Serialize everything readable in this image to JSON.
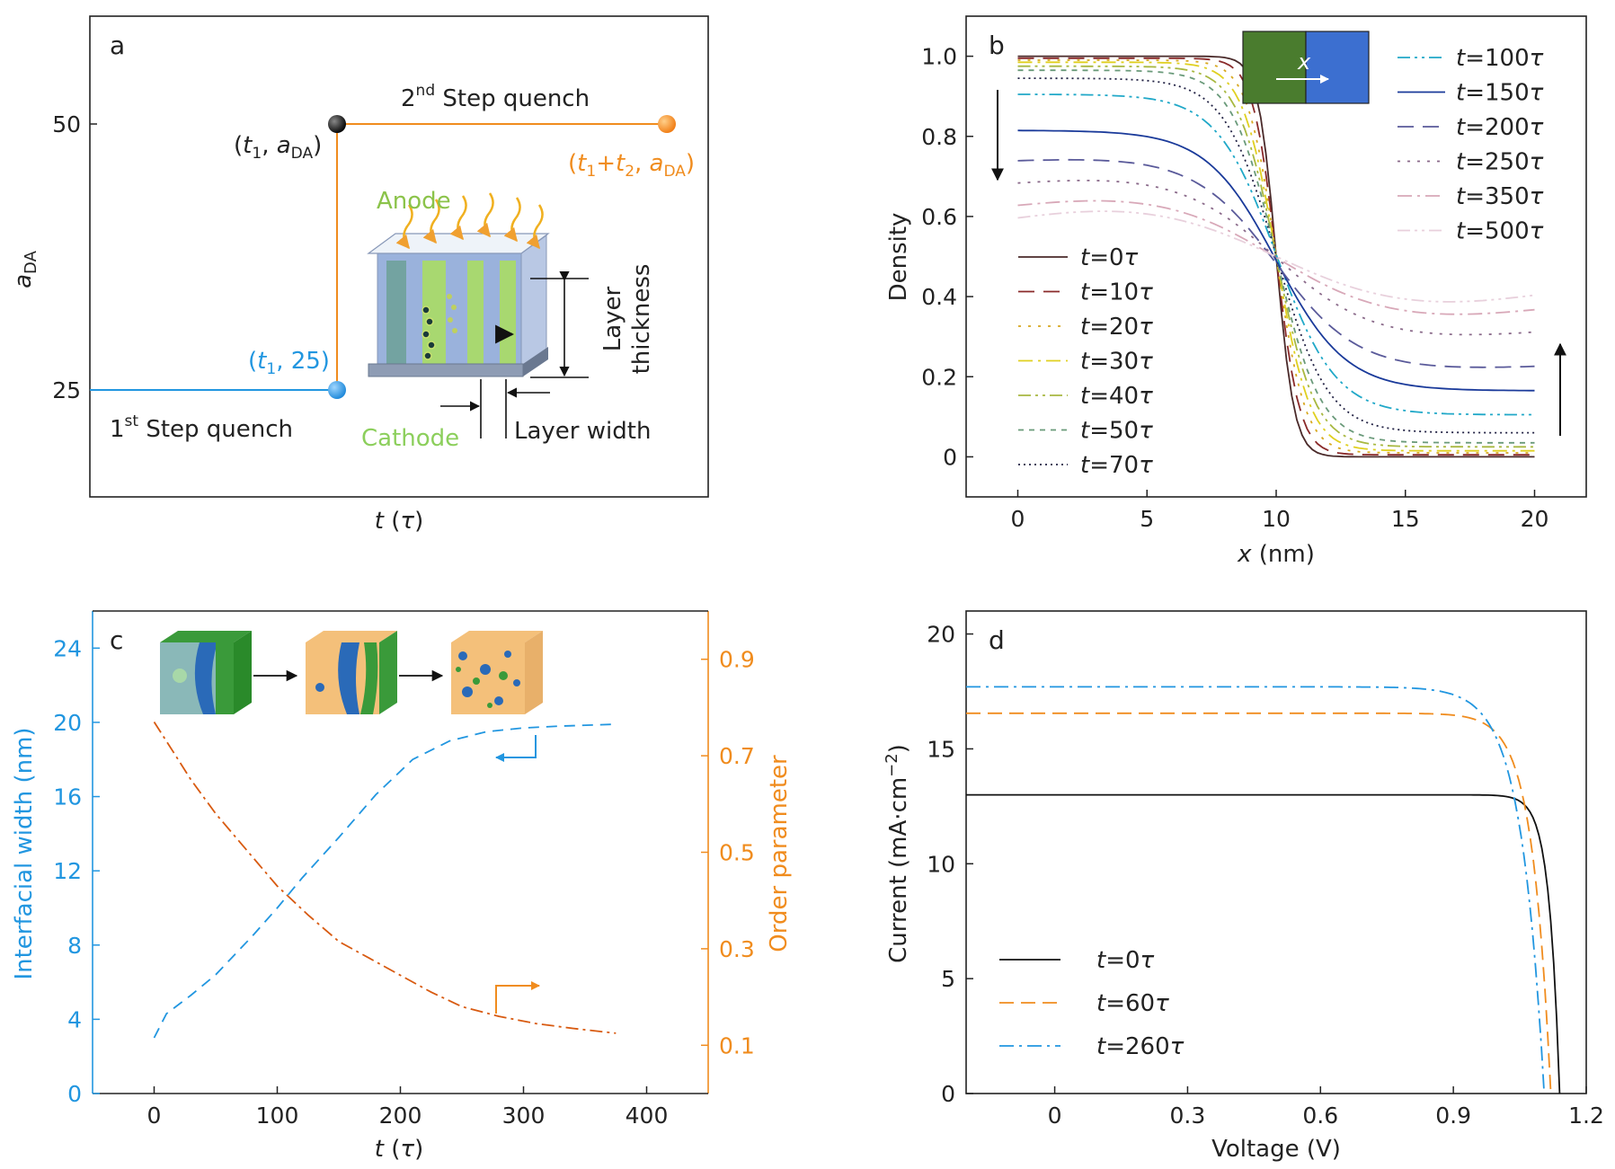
{
  "colors": {
    "axis": "#222222",
    "blue": "#2196e0",
    "orange": "#f08c1e",
    "darkorange": "#d85a10",
    "green": "#8bc34a",
    "cathode_green": "#8ccf5c",
    "box_green": "#4a7c2e",
    "box_blue": "#3c6fd0"
  },
  "chart_data": [
    {
      "panel": "a",
      "type": "line",
      "xlabel": "t (τ)",
      "ylabel": "aDA",
      "ylabel_main": "a",
      "ylabel_sub": "DA",
      "yticks": [
        25,
        50
      ],
      "ylim": [
        15,
        60
      ],
      "xlim": [
        0,
        10
      ],
      "segments": [
        {
          "name": "1st step",
          "x": [
            0,
            4.0
          ],
          "y": [
            25,
            25
          ],
          "color": "#2196e0"
        },
        {
          "name": "vertical",
          "x": [
            4.0,
            4.0
          ],
          "y": [
            25,
            50
          ],
          "color": "#f08c1e"
        },
        {
          "name": "2nd step",
          "x": [
            4.0,
            9.3
          ],
          "y": [
            50,
            50
          ],
          "color": "#f08c1e"
        }
      ],
      "points": [
        {
          "name": "(t1, 25)",
          "x": 4.0,
          "y": 25,
          "color": "#2196e0"
        },
        {
          "name": "(t1, aDA)",
          "x": 4.0,
          "y": 50,
          "color": "#111111"
        },
        {
          "name": "(t1+t2, aDA)",
          "x": 9.3,
          "y": 50,
          "color": "#f08c1e"
        }
      ],
      "annotations": {
        "step2_main": "2",
        "step2_sup": "nd",
        "step2_rest": " Step quench",
        "step1_main": "1",
        "step1_sup": "st",
        "step1_rest": " Step quench",
        "p_black_a": "(",
        "p_black_t": "t",
        "p_black_1": "1",
        "p_black_sep": ", ",
        "p_black_a2": "a",
        "p_black_da": "DA",
        "p_black_close": ")",
        "p_blue_open": "(",
        "p_blue_t": "t",
        "p_blue_1": "1",
        "p_blue_rest": ", 25)",
        "p_orange_open": "(",
        "p_orange_t": "t",
        "p_orange_1": "1",
        "p_orange_plus": "+",
        "p_orange_t2": "t",
        "p_orange_2": "2",
        "p_orange_sep": ", ",
        "p_orange_a": "a",
        "p_orange_da": "DA",
        "p_orange_close": ")",
        "anode": "Anode",
        "cathode": "Cathode",
        "layer_thickness_1": "Layer",
        "layer_thickness_2": "thickness",
        "layer_width": "Layer width"
      }
    },
    {
      "panel": "b",
      "type": "line",
      "xlabel": "x (nm)",
      "xlabel_italic": "x",
      "xlabel_rest": " (nm)",
      "ylabel": "Density",
      "xlim": [
        -2,
        22
      ],
      "ylim": [
        -0.1,
        1.1
      ],
      "xticks": [
        0,
        5,
        10,
        15,
        20
      ],
      "yticks": [
        0,
        0.2,
        0.4,
        0.6,
        0.8,
        1.0
      ],
      "ytick_labels": [
        "0",
        "0.2",
        "0.4",
        "0.6",
        "0.8",
        "1.0"
      ],
      "inset_label": "x",
      "series": [
        {
          "name": "t=0τ",
          "left": 1.0,
          "right": 0.0,
          "w": 1.4,
          "color": "#4a2a2a",
          "dash": ""
        },
        {
          "name": "t=10τ",
          "left": 0.995,
          "right": 0.005,
          "w": 1.8,
          "color": "#8a2a2a",
          "dash": "18,10"
        },
        {
          "name": "t=20τ",
          "left": 0.99,
          "right": 0.01,
          "w": 2.2,
          "color": "#d8a820",
          "dash": "3,8"
        },
        {
          "name": "t=30τ",
          "left": 0.985,
          "right": 0.015,
          "w": 2.6,
          "color": "#e0d020",
          "dash": "16,6,3,6"
        },
        {
          "name": "t=40τ",
          "left": 0.975,
          "right": 0.025,
          "w": 3.0,
          "color": "#a8b840",
          "dash": "14,5,3,5,3,5"
        },
        {
          "name": "t=50τ",
          "left": 0.965,
          "right": 0.035,
          "w": 3.4,
          "color": "#6a9a7a",
          "dash": "6,6"
        },
        {
          "name": "t=70τ",
          "left": 0.945,
          "right": 0.06,
          "w": 4.0,
          "color": "#222244",
          "dash": "2,4"
        },
        {
          "name": "t=100τ",
          "left": 0.905,
          "right": 0.105,
          "w": 4.6,
          "color": "#20a8c8",
          "dash": "14,5,3,5,3,5"
        },
        {
          "name": "t=150τ",
          "left": 0.815,
          "right": 0.165,
          "w": 5.4,
          "color": "#1a3a9a",
          "dash": ""
        },
        {
          "name": "t=200τ",
          "left": 0.74,
          "right": 0.225,
          "w": 6.2,
          "color": "#5a5a9a",
          "dash": "18,10"
        },
        {
          "name": "t=250τ",
          "left": 0.685,
          "right": 0.31,
          "w": 7.2,
          "color": "#8a6a8a",
          "dash": "3,8"
        },
        {
          "name": "t=350τ",
          "left": 0.63,
          "right": 0.365,
          "w": 8.4,
          "color": "#d8a8b8",
          "dash": "16,6,3,6"
        },
        {
          "name": "t=500τ",
          "left": 0.6,
          "right": 0.4,
          "w": 10.0,
          "color": "#e8d0dc",
          "dash": "14,5,3,5,3,5"
        }
      ],
      "legend_left": [
        "t=0τ",
        "t=10τ",
        "t=20τ",
        "t=30τ",
        "t=40τ",
        "t=50τ",
        "t=70τ"
      ],
      "legend_right": [
        "t=100τ",
        "t=150τ",
        "t=200τ",
        "t=250τ",
        "t=350τ",
        "t=500τ"
      ]
    },
    {
      "panel": "c",
      "type": "line",
      "xlabel": "t (τ)",
      "ylabel_left": "Interfacial width (nm)",
      "ylabel_right": "Order parameter",
      "xlim": [
        -50,
        450
      ],
      "ylim_left": [
        0,
        26
      ],
      "ylim_right": [
        0,
        1.0
      ],
      "xticks": [
        0,
        100,
        200,
        300,
        400
      ],
      "yticks_left": [
        0,
        4,
        8,
        12,
        16,
        20,
        24
      ],
      "yticks_right": [
        0.1,
        0.3,
        0.5,
        0.7,
        0.9
      ],
      "series": [
        {
          "name": "Interfacial width",
          "axis": "left",
          "color": "#2196e0",
          "x": [
            0,
            10,
            30,
            50,
            80,
            100,
            120,
            150,
            180,
            210,
            240,
            270,
            300,
            330,
            375
          ],
          "y": [
            3.0,
            4.3,
            5.3,
            6.4,
            8.5,
            10.0,
            11.6,
            13.8,
            16.1,
            18.0,
            19.0,
            19.5,
            19.7,
            19.8,
            19.9
          ]
        },
        {
          "name": "Order parameter",
          "axis": "right",
          "color": "#d85a10",
          "x": [
            0,
            15,
            30,
            50,
            70,
            100,
            125,
            150,
            175,
            200,
            225,
            250,
            280,
            310,
            340,
            375
          ],
          "y": [
            0.77,
            0.71,
            0.65,
            0.58,
            0.52,
            0.43,
            0.37,
            0.315,
            0.28,
            0.245,
            0.21,
            0.18,
            0.16,
            0.145,
            0.135,
            0.125
          ]
        }
      ]
    },
    {
      "panel": "d",
      "type": "line",
      "xlabel": "Voltage (V)",
      "ylabel": "Current (mA·cm⁻²)",
      "ylabel_main": "Current (mA·cm",
      "ylabel_sup": "−2",
      "ylabel_close": ")",
      "xlim": [
        -0.2,
        1.2
      ],
      "ylim": [
        0,
        21
      ],
      "xticks": [
        0,
        0.3,
        0.6,
        0.9,
        1.2
      ],
      "xtick_labels": [
        "0",
        "0.3",
        "0.6",
        "0.9",
        "1.2"
      ],
      "yticks": [
        0,
        5,
        10,
        15,
        20
      ],
      "series": [
        {
          "name": "t=0τ",
          "color": "#111111",
          "dash": "",
          "jsc": 13.0,
          "voc": 1.14,
          "n": 0.9,
          "slope": 0.5
        },
        {
          "name": "t=60τ",
          "color": "#f08c1e",
          "dash": "16,8",
          "jsc": 16.55,
          "voc": 1.12,
          "n": 1.6,
          "slope": 1.5
        },
        {
          "name": "t=260τ",
          "color": "#2196e0",
          "dash": "16,6,3,6",
          "jsc": 17.7,
          "voc": 1.105,
          "n": 2.0,
          "slope": 2.2
        }
      ]
    }
  ]
}
